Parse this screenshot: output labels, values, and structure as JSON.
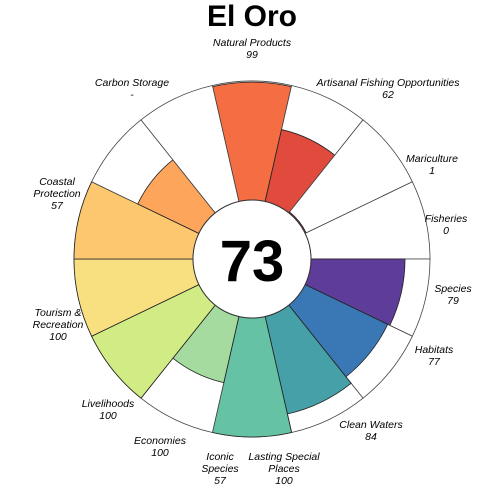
{
  "chart_data": {
    "type": "flower",
    "title": "El Oro",
    "overall_score": "73",
    "max_score": 100,
    "petals": [
      {
        "name": "Natural Products",
        "value": 99,
        "display": "99",
        "color": "#F46D43"
      },
      {
        "name": "Artisanal Fishing Opportunities",
        "value": 62,
        "display": "62",
        "color": "#E04B3E"
      },
      {
        "name": "Mariculture",
        "value": 1,
        "display": "1",
        "color": "#D53E4F"
      },
      {
        "name": "Fisheries",
        "value": 0,
        "display": "0",
        "color": "#C83C4B"
      },
      {
        "name": "Species",
        "value": 79,
        "display": "79",
        "color": "#5E3C99"
      },
      {
        "name": "Habitats",
        "value": 77,
        "display": "77",
        "color": "#3A77B5"
      },
      {
        "name": "Clean Waters",
        "value": 84,
        "display": "84",
        "color": "#46A0A7"
      },
      {
        "name": "Lasting Special Places",
        "value": 100,
        "display": "100",
        "color": "#66C2A5"
      },
      {
        "name": "Iconic Species",
        "value": 57,
        "display": "57",
        "color": "#A6DBA0"
      },
      {
        "name": "Economies",
        "value": 100,
        "display": "100",
        "color": "#D2EC85"
      },
      {
        "name": "Livelihoods",
        "value": 100,
        "display": "100",
        "color": "#F8E081"
      },
      {
        "name": "Tourism & Recreation",
        "value": 100,
        "display": "100",
        "color": "#FDC76F"
      },
      {
        "name": "Coastal Protection",
        "value": 57,
        "display": "57",
        "color": "#FDA65B"
      },
      {
        "name": "Carbon Storage",
        "value": null,
        "display": "-",
        "color": "#F98E52"
      }
    ]
  }
}
